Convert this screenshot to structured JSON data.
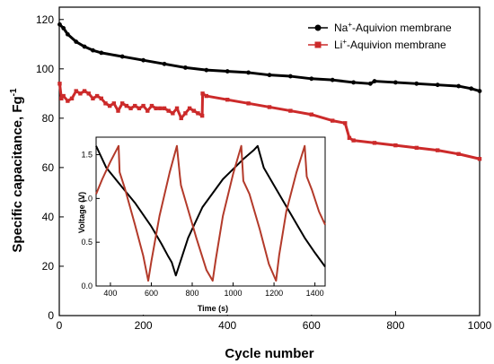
{
  "chart_data": [
    {
      "type": "scatter",
      "xlabel": "Cycle number",
      "ylabel_main": "Specific capacitance, Fg",
      "ylabel_sup": "-1",
      "xlim": [
        0,
        1000
      ],
      "ylim": [
        0,
        125
      ],
      "xticks": [
        0,
        200,
        400,
        600,
        800,
        1000
      ],
      "yticks": [
        0,
        20,
        40,
        60,
        80,
        100,
        120
      ],
      "grid": false,
      "legend_position": "top-right",
      "series": [
        {
          "name_base": "Na",
          "name_sup": "+",
          "name_rest": "-Aquivion membrane",
          "color": "#000000",
          "marker": "circle",
          "x": [
            1,
            10,
            20,
            40,
            60,
            80,
            100,
            150,
            200,
            250,
            300,
            350,
            400,
            450,
            500,
            550,
            600,
            650,
            700,
            740,
            750,
            800,
            850,
            900,
            950,
            980,
            1000
          ],
          "y": [
            118,
            116.5,
            114,
            111,
            109,
            107.5,
            106.5,
            105,
            103.5,
            102,
            100.5,
            99.5,
            99,
            98.5,
            97.5,
            97,
            96,
            95.5,
            94.5,
            94,
            95,
            94.5,
            94,
            93.5,
            93,
            92,
            91
          ]
        },
        {
          "name_base": "Li",
          "name_sup": "+",
          "name_rest": "-Aquivion membrane",
          "color": "#cc2a2a",
          "marker": "square",
          "x": [
            1,
            5,
            10,
            20,
            30,
            40,
            50,
            60,
            70,
            80,
            90,
            100,
            110,
            120,
            130,
            140,
            150,
            160,
            170,
            180,
            190,
            200,
            210,
            220,
            230,
            240,
            250,
            260,
            270,
            280,
            290,
            300,
            310,
            320,
            330,
            340,
            341,
            350,
            400,
            450,
            500,
            550,
            600,
            650,
            680,
            690,
            700,
            750,
            800,
            850,
            900,
            950,
            1000
          ],
          "y": [
            94,
            88,
            89,
            87,
            88,
            91,
            90,
            91,
            90,
            88,
            89,
            88,
            86,
            85,
            86,
            83,
            86,
            85,
            84,
            85,
            84,
            85,
            83,
            85,
            84,
            84,
            84,
            83,
            82,
            84,
            80,
            82,
            84,
            83,
            82,
            81,
            90,
            89,
            87.5,
            86,
            84.5,
            83,
            81.5,
            79,
            78,
            72,
            71,
            70,
            69,
            68,
            67,
            65.5,
            63.5
          ]
        }
      ]
    },
    {
      "type": "line",
      "xlabel": "Time (s)",
      "ylabel": "Voltage (V)",
      "xlim": [
        330,
        1450
      ],
      "ylim": [
        0,
        1.7
      ],
      "xticks": [
        400,
        600,
        800,
        1000,
        1200,
        1400
      ],
      "yticks": [
        0.0,
        0.5,
        1.0,
        1.5
      ],
      "series": [
        {
          "color": "#000000",
          "x": [
            330,
            380,
            450,
            520,
            600,
            650,
            680,
            700,
            720,
            780,
            850,
            950,
            1050,
            1100,
            1120,
            1150,
            1200,
            1250,
            1300,
            1350,
            1400,
            1450
          ],
          "y": [
            1.6,
            1.35,
            1.15,
            0.95,
            0.68,
            0.48,
            0.35,
            0.27,
            0.12,
            0.55,
            0.9,
            1.22,
            1.45,
            1.55,
            1.6,
            1.35,
            1.15,
            0.95,
            0.75,
            0.55,
            0.38,
            0.22
          ]
        },
        {
          "color": "#b33a2a",
          "x": [
            330,
            360,
            400,
            440,
            445,
            470,
            520,
            560,
            585,
            600,
            640,
            690,
            725,
            740,
            745,
            770,
            820,
            870,
            900,
            915,
            950,
            1000,
            1040,
            1050,
            1080,
            1130,
            1175,
            1210,
            1225,
            1260,
            1310,
            1350,
            1360,
            1385,
            1420,
            1450
          ],
          "y": [
            1.05,
            1.22,
            1.42,
            1.6,
            1.3,
            1.12,
            0.7,
            0.35,
            0.06,
            0.28,
            0.8,
            1.3,
            1.6,
            1.25,
            1.15,
            0.95,
            0.55,
            0.18,
            0.06,
            0.3,
            0.8,
            1.28,
            1.6,
            1.2,
            1.05,
            0.65,
            0.25,
            0.06,
            0.35,
            0.85,
            1.3,
            1.6,
            1.25,
            1.1,
            0.85,
            0.7
          ]
        }
      ]
    }
  ]
}
